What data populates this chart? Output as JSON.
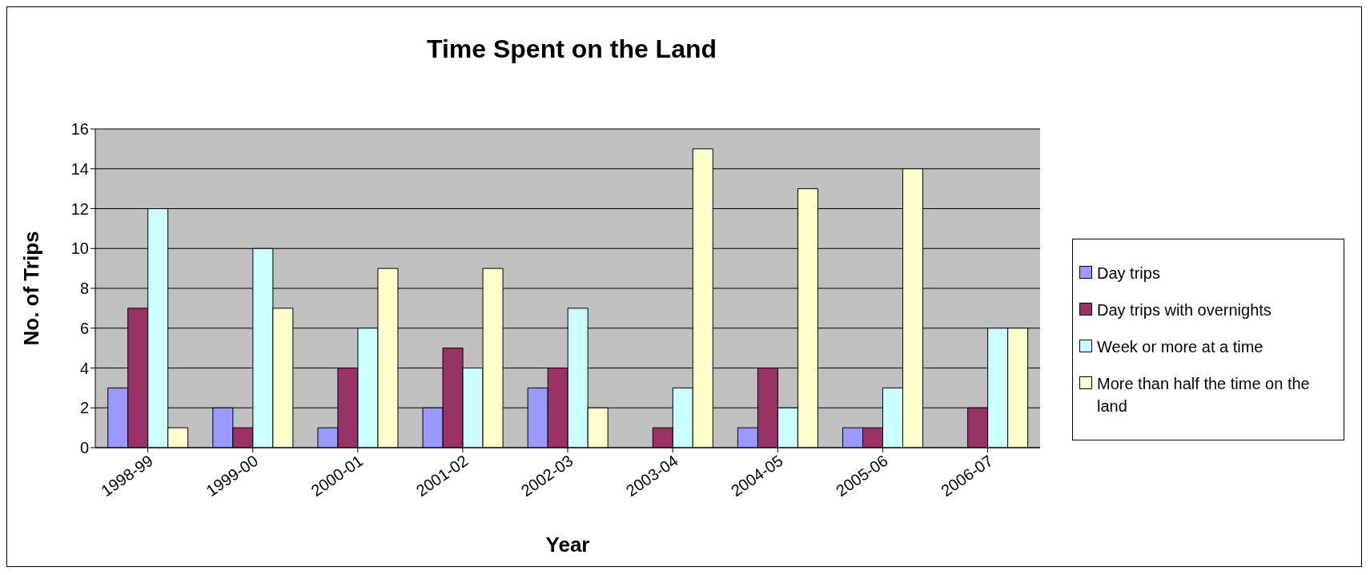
{
  "chart_data": {
    "type": "bar",
    "title": "Time Spent on the Land",
    "xlabel": "Year",
    "ylabel": "No. of Trips",
    "categories": [
      "1998-99",
      "1999-00",
      "2000-01",
      "2001-02",
      "2002-03",
      "2003-04",
      "2004-05",
      "2005-06",
      "2006-07"
    ],
    "series": [
      {
        "name": "Day trips",
        "color": "#9999ff",
        "values": [
          3,
          2,
          1,
          2,
          3,
          0,
          1,
          1,
          0
        ]
      },
      {
        "name": "Day trips with overnights",
        "color": "#993366",
        "values": [
          7,
          1,
          4,
          5,
          4,
          1,
          4,
          1,
          2
        ]
      },
      {
        "name": "Week or more at a time",
        "color": "#ccffff",
        "values": [
          12,
          10,
          6,
          4,
          7,
          3,
          2,
          3,
          6
        ]
      },
      {
        "name": "More than half the time on the land",
        "color": "#ffffcc",
        "values": [
          1,
          7,
          9,
          9,
          2,
          15,
          13,
          14,
          6
        ]
      }
    ],
    "ylim": [
      0,
      16
    ],
    "yticks": [
      0,
      2,
      4,
      6,
      8,
      10,
      12,
      14,
      16
    ],
    "grid": "y",
    "legend": "right"
  }
}
